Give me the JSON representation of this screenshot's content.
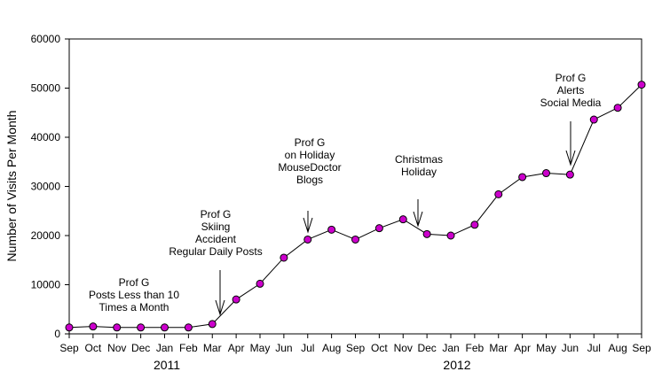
{
  "chart_data": {
    "type": "line",
    "title": "",
    "xlabel": "",
    "ylabel": "Number of Visits Per Month",
    "ylim": [
      0,
      60000
    ],
    "y_ticks": [
      "0",
      "10000",
      "20000",
      "30000",
      "40000",
      "50000",
      "60000"
    ],
    "x_tick_labels": [
      "Sep",
      "Oct",
      "Nov",
      "Dec",
      "Jan",
      "Feb",
      "Mar",
      "Apr",
      "May",
      "Jun",
      "Jul",
      "Aug",
      "Sep",
      "Oct",
      "Nov",
      "Dec",
      "Jan",
      "Feb",
      "Mar",
      "Apr",
      "May",
      "Jun",
      "Jul",
      "Aug",
      "Sep"
    ],
    "year_labels": [
      "2011",
      "2012"
    ],
    "grid": false,
    "legend": "none",
    "marker_color": "#cc00cc",
    "line_color": "#000000",
    "series": [
      {
        "values": [
          1300,
          1500,
          1300,
          1300,
          1300,
          1300,
          2000,
          7000,
          10200,
          15500,
          19200,
          21200,
          19200,
          21500,
          23300,
          20300,
          20000,
          22200,
          28400,
          31900,
          32700,
          32400,
          43600,
          46000,
          50700
        ]
      }
    ],
    "annotations": [
      {
        "lines": [
          "Prof G",
          "Posts Less than 10",
          "Times a Month"
        ]
      },
      {
        "lines": [
          "Prof G",
          "Skiing",
          "Accident",
          "Regular Daily Posts"
        ]
      },
      {
        "lines": [
          "Prof G",
          "on Holiday",
          "MouseDoctor",
          "Blogs"
        ]
      },
      {
        "lines": [
          "Christmas",
          "Holiday"
        ]
      },
      {
        "lines": [
          "Prof G",
          "Alerts",
          "Social Media"
        ]
      }
    ]
  }
}
